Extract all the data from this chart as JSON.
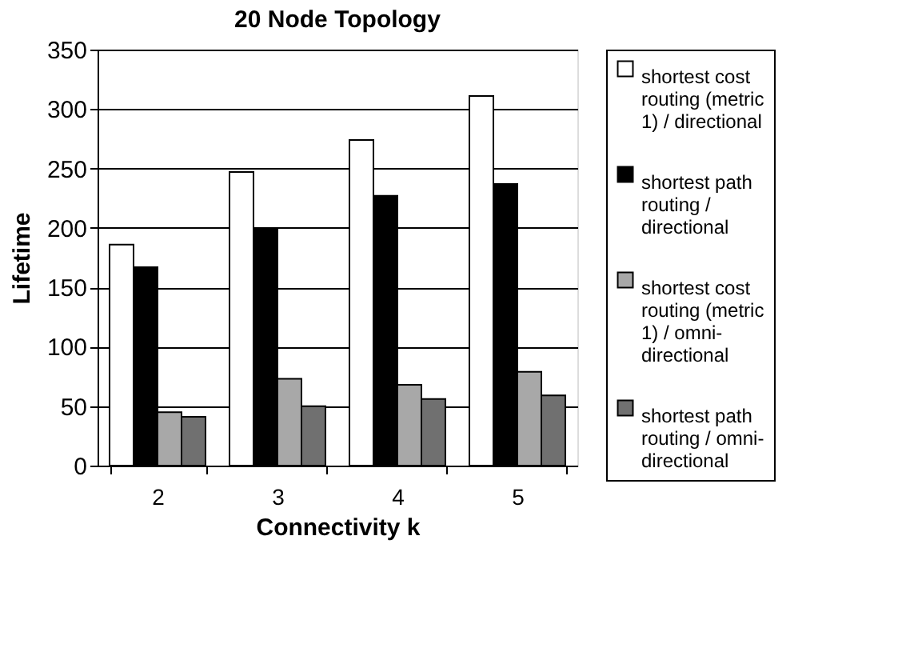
{
  "chart_data": {
    "type": "bar",
    "title": "20 Node Topology",
    "xlabel": "Connectivity k",
    "ylabel": "Lifetime",
    "categories": [
      "2",
      "3",
      "4",
      "5"
    ],
    "series": [
      {
        "name": "shortest cost routing (metric 1) / directional",
        "color": "#ffffff",
        "values": [
          186,
          247,
          274,
          311
        ]
      },
      {
        "name": "shortest path routing / directional",
        "color": "#000000",
        "values": [
          167,
          199,
          227,
          237
        ]
      },
      {
        "name": "shortest cost routing (metric 1) / omni-directional",
        "color": "#a8a8a8",
        "values": [
          45,
          73,
          68,
          79
        ]
      },
      {
        "name": "shortest path routing / omni-directional",
        "color": "#707070",
        "values": [
          41,
          50,
          56,
          59
        ]
      }
    ],
    "ylim": [
      0,
      350
    ],
    "yticks": [
      0,
      50,
      100,
      150,
      200,
      250,
      300,
      350
    ],
    "grid": "y",
    "legend": "right"
  }
}
